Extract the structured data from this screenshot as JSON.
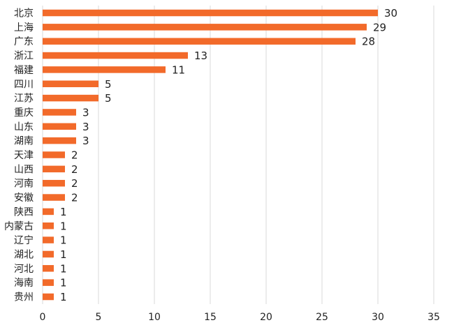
{
  "chart_data": {
    "type": "bar",
    "orientation": "horizontal",
    "categories": [
      "北京",
      "上海",
      "广东",
      "浙江",
      "福建",
      "四川",
      "江苏",
      "重庆",
      "山东",
      "湖南",
      "天津",
      "山西",
      "河南",
      "安徽",
      "陕西",
      "内蒙古",
      "辽宁",
      "湖北",
      "河北",
      "海南",
      "贵州"
    ],
    "values": [
      30,
      29,
      28,
      13,
      11,
      5,
      5,
      3,
      3,
      3,
      2,
      2,
      2,
      2,
      1,
      1,
      1,
      1,
      1,
      1,
      1
    ],
    "xlim": [
      0,
      35
    ],
    "xticks": [
      0,
      5,
      10,
      15,
      20,
      25,
      30,
      35
    ],
    "grid": "vertical",
    "data_labels": true,
    "colors": {
      "bar": "#f26a2a",
      "grid": "#d9d9d9",
      "text": "#222222"
    }
  }
}
